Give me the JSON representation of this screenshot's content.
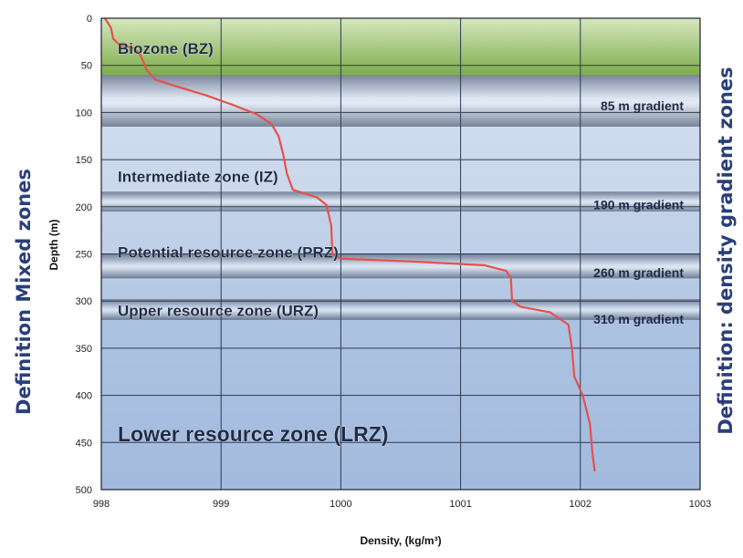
{
  "chart_data": {
    "type": "line",
    "xlabel": "Density, (kg/m³)",
    "ylabel": "Depth (m)",
    "xlim": [
      998,
      1003
    ],
    "ylim": [
      0,
      500
    ],
    "y_inverted": true,
    "grid": true,
    "x_ticks": [
      "998",
      "999",
      "1000",
      "1001",
      "1002",
      "1003"
    ],
    "y_ticks": [
      "0",
      "50",
      "100",
      "150",
      "200",
      "250",
      "300",
      "350",
      "400",
      "450",
      "500"
    ],
    "left_label": "Definition Mixed zones",
    "right_label": "Definition: density gradient zones",
    "zones": [
      {
        "label": "Biozone (BZ)",
        "from": 0,
        "to": 60,
        "color": "#8fbf5a",
        "label_depth": 32
      },
      {
        "label": "Intermediate zone (IZ)",
        "from": 60,
        "to": 184,
        "color": "#c9d6ea",
        "label_depth": 168
      },
      {
        "label": "Potential resource zone (PRZ)",
        "from": 184,
        "to": 278,
        "color": "#b8cbe6",
        "label_depth": 248
      },
      {
        "label": "Upper resource zone (URZ)",
        "from": 278,
        "to": 318,
        "color": "#a9c0e0",
        "label_depth": 310
      },
      {
        "label": "Lower resource zone (LRZ)",
        "from": 318,
        "to": 500,
        "color": "#9cb6dc",
        "label_depth": 440
      }
    ],
    "gradient_bands": [
      {
        "label": "85 m gradient",
        "from": 60,
        "to": 115,
        "label_depth": 93
      },
      {
        "label": "190 m gradient",
        "from": 184,
        "to": 205,
        "label_depth": 198
      },
      {
        "label": "260 m gradient",
        "from": 250,
        "to": 276,
        "label_depth": 270
      },
      {
        "label": "310 m gradient",
        "from": 298,
        "to": 320,
        "label_depth": 319
      }
    ],
    "series": [
      {
        "color": "#e8504a",
        "points": [
          {
            "x": 998.03,
            "y": 0
          },
          {
            "x": 998.08,
            "y": 10
          },
          {
            "x": 998.1,
            "y": 22
          },
          {
            "x": 998.15,
            "y": 28
          },
          {
            "x": 998.28,
            "y": 32
          },
          {
            "x": 998.33,
            "y": 40
          },
          {
            "x": 998.38,
            "y": 55
          },
          {
            "x": 998.45,
            "y": 65
          },
          {
            "x": 998.62,
            "y": 72
          },
          {
            "x": 998.88,
            "y": 82
          },
          {
            "x": 999.1,
            "y": 92
          },
          {
            "x": 999.3,
            "y": 102
          },
          {
            "x": 999.42,
            "y": 112
          },
          {
            "x": 999.48,
            "y": 125
          },
          {
            "x": 999.52,
            "y": 145
          },
          {
            "x": 999.55,
            "y": 165
          },
          {
            "x": 999.6,
            "y": 182
          },
          {
            "x": 999.8,
            "y": 190
          },
          {
            "x": 999.88,
            "y": 198
          },
          {
            "x": 999.92,
            "y": 220
          },
          {
            "x": 999.93,
            "y": 250
          },
          {
            "x": 1000.0,
            "y": 255
          },
          {
            "x": 1000.6,
            "y": 258
          },
          {
            "x": 1001.2,
            "y": 262
          },
          {
            "x": 1001.38,
            "y": 268
          },
          {
            "x": 1001.42,
            "y": 275
          },
          {
            "x": 1001.43,
            "y": 300
          },
          {
            "x": 1001.5,
            "y": 306
          },
          {
            "x": 1001.75,
            "y": 312
          },
          {
            "x": 1001.9,
            "y": 325
          },
          {
            "x": 1001.93,
            "y": 350
          },
          {
            "x": 1001.95,
            "y": 380
          },
          {
            "x": 1002.02,
            "y": 400
          },
          {
            "x": 1002.08,
            "y": 430
          },
          {
            "x": 1002.1,
            "y": 460
          },
          {
            "x": 1002.12,
            "y": 480
          }
        ]
      }
    ]
  }
}
